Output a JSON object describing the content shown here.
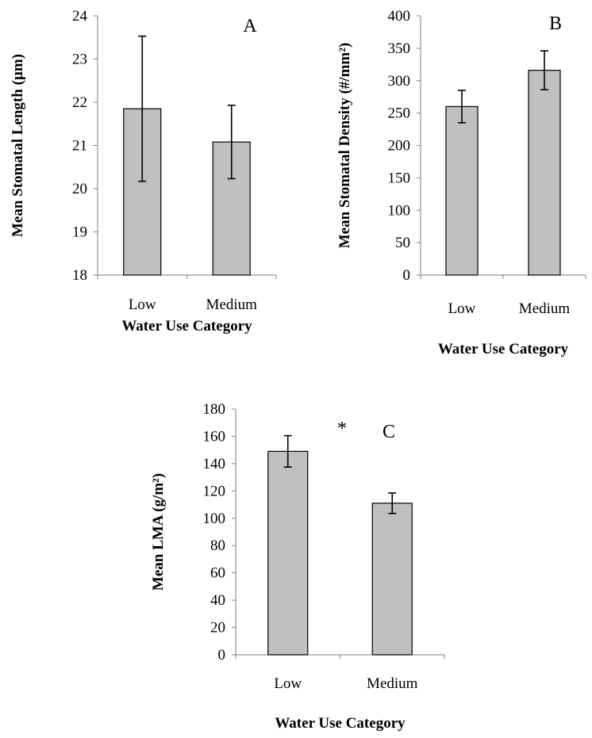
{
  "chart_data": [
    {
      "type": "bar",
      "panel_label": "A",
      "annotation": "",
      "categories": [
        "Low",
        "Medium"
      ],
      "values": [
        21.85,
        21.08
      ],
      "errors": [
        1.68,
        0.85
      ],
      "ylim": [
        18,
        24
      ],
      "yticks": [
        "18",
        "19",
        "20",
        "21",
        "22",
        "23",
        "24"
      ],
      "ylabel": "Mean Stomatal Length (µm)",
      "xlabel": "Water Use Category",
      "bar_color": "#c0c0c0"
    },
    {
      "type": "bar",
      "panel_label": "B",
      "annotation": "",
      "categories": [
        "Low",
        "Medium"
      ],
      "values": [
        260,
        316
      ],
      "errors": [
        25,
        30
      ],
      "ylim": [
        0,
        400
      ],
      "yticks": [
        "0",
        "50",
        "100",
        "150",
        "200",
        "250",
        "300",
        "350",
        "400"
      ],
      "ylabel": "Mean Stomatal Density (#/mm²)",
      "xlabel": "Water Use Category",
      "bar_color": "#c0c0c0"
    },
    {
      "type": "bar",
      "panel_label": "C",
      "annotation": "*",
      "categories": [
        "Low",
        "Medium"
      ],
      "values": [
        149,
        111
      ],
      "errors": [
        11.5,
        7.5
      ],
      "ylim": [
        0,
        180
      ],
      "yticks": [
        "0",
        "20",
        "40",
        "60",
        "80",
        "100",
        "120",
        "140",
        "160",
        "180"
      ],
      "ylabel": "Mean LMA (g/m²)",
      "xlabel": "Water Use Category",
      "bar_color": "#c0c0c0"
    }
  ]
}
